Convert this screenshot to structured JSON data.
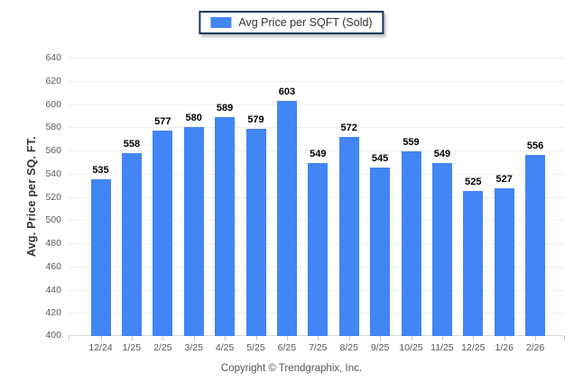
{
  "legend": {
    "label": "Avg Price per SQFT (Sold)"
  },
  "footer": {
    "copyright": "Copyright © Trendgraphix, Inc."
  },
  "colors": {
    "bar": "#4285F4",
    "legend_border": "#17375E",
    "gridline": "#F0F0F0",
    "axis_line": "#D9D9D9",
    "axis_text": "#595959",
    "value_text": "#000000"
  },
  "chart_data": {
    "type": "bar",
    "title": "Avg Price per SQFT (Sold)",
    "categories": [
      "12/24",
      "1/25",
      "2/25",
      "3/25",
      "4/25",
      "5/25",
      "6/25",
      "7/25",
      "8/25",
      "9/25",
      "10/25",
      "11/25",
      "12/25",
      "1/26",
      "2/26"
    ],
    "values": [
      535,
      558,
      577,
      580,
      589,
      579,
      603,
      549,
      572,
      545,
      559,
      549,
      525,
      527,
      556
    ],
    "xlabel": "",
    "ylabel": "Avg. Price per SQ. FT.",
    "ylim": [
      400,
      640
    ],
    "ytick_step": 20,
    "yticks": [
      640,
      620,
      600,
      580,
      560,
      540,
      520,
      500,
      480,
      460,
      440,
      420,
      400
    ],
    "grid": "horizontal",
    "legend_position": "top-center",
    "value_labels": true
  }
}
